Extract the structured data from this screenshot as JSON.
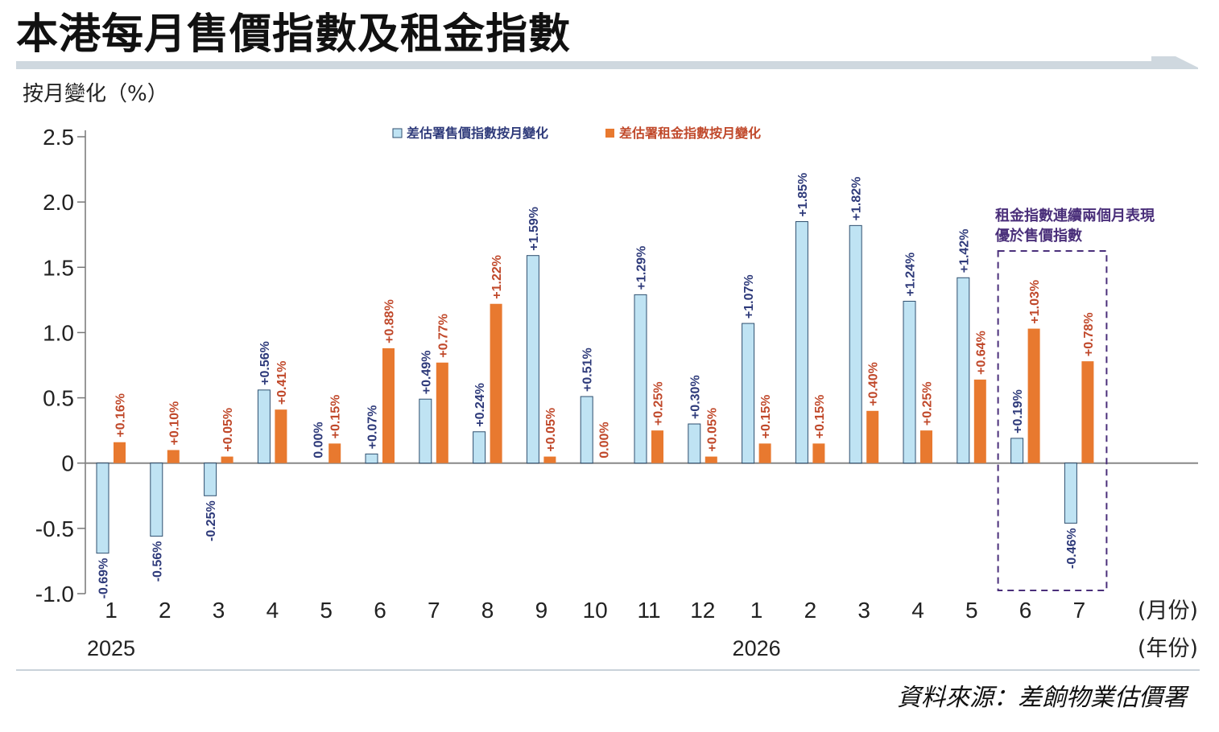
{
  "title": "本港每月售價指數及租金指數",
  "y_axis_label": "按月變化（%）",
  "month_unit": "(月份)",
  "year_unit": "(年份)",
  "source": "資料來源：差餉物業估價署",
  "annotation": {
    "line1": "租金指數連續兩個月表現",
    "line2": "優於售價指數"
  },
  "colors": {
    "sale_fill": "#bfe3f3",
    "sale_stroke": "#2f4f6f",
    "rent_fill": "#e8792f",
    "sale_label": "#2e3a7a",
    "rent_label": "#c0482a",
    "annotation": "#4a2f7a",
    "axis": "#777777"
  },
  "chart_data": {
    "type": "bar",
    "categories": [
      "1",
      "2",
      "3",
      "4",
      "5",
      "6",
      "7",
      "8",
      "9",
      "10",
      "11",
      "12",
      "1",
      "2",
      "3",
      "4",
      "5",
      "6",
      "7"
    ],
    "years": [
      {
        "label": "2025",
        "at_category": 0
      },
      {
        "label": "2026",
        "at_category": 12
      }
    ],
    "ylim": [
      -1.0,
      2.5
    ],
    "yticks": [
      "2.5",
      "2.0",
      "1.5",
      "1.0",
      "0.5",
      "0",
      "-0.5",
      "-1.0"
    ],
    "ytick_values": [
      2.5,
      2.0,
      1.5,
      1.0,
      0.5,
      0,
      -0.5,
      -1.0
    ],
    "legend_position": "top-center",
    "series": [
      {
        "name": "差估署售價指數按月變化",
        "values": [
          -0.69,
          -0.56,
          -0.25,
          0.56,
          0.0,
          0.07,
          0.49,
          0.24,
          1.59,
          0.51,
          1.29,
          0.3,
          1.07,
          1.85,
          1.82,
          1.24,
          1.42,
          0.19,
          -0.46
        ],
        "labels": [
          "-0.69%",
          "-0.56%",
          "-0.25%",
          "+0.56%",
          "0.00%",
          "+0.07%",
          "+0.49%",
          "+0.24%",
          "+1.59%",
          "+0.51%",
          "+1.29%",
          "+0.30%",
          "+1.07%",
          "+1.85%",
          "+1.82%",
          "+1.24%",
          "+1.42%",
          "+0.19%",
          "-0.46%"
        ]
      },
      {
        "name": "差估署租金指數按月變化",
        "values": [
          0.16,
          0.1,
          0.05,
          0.41,
          0.15,
          0.88,
          0.77,
          1.22,
          0.05,
          0.0,
          0.25,
          0.05,
          0.15,
          0.15,
          0.4,
          0.25,
          0.64,
          1.03,
          0.78
        ],
        "labels": [
          "+0.16%",
          "+0.10%",
          "+0.05%",
          "+0.41%",
          "+0.15%",
          "+0.88%",
          "+0.77%",
          "+1.22%",
          "+0.05%",
          "0.00%",
          "+0.25%",
          "+0.05%",
          "+0.15%",
          "+0.15%",
          "+0.40%",
          "+0.25%",
          "+0.64%",
          "+1.03%",
          "+0.78%"
        ]
      }
    ],
    "highlight_categories": [
      17,
      18
    ]
  }
}
